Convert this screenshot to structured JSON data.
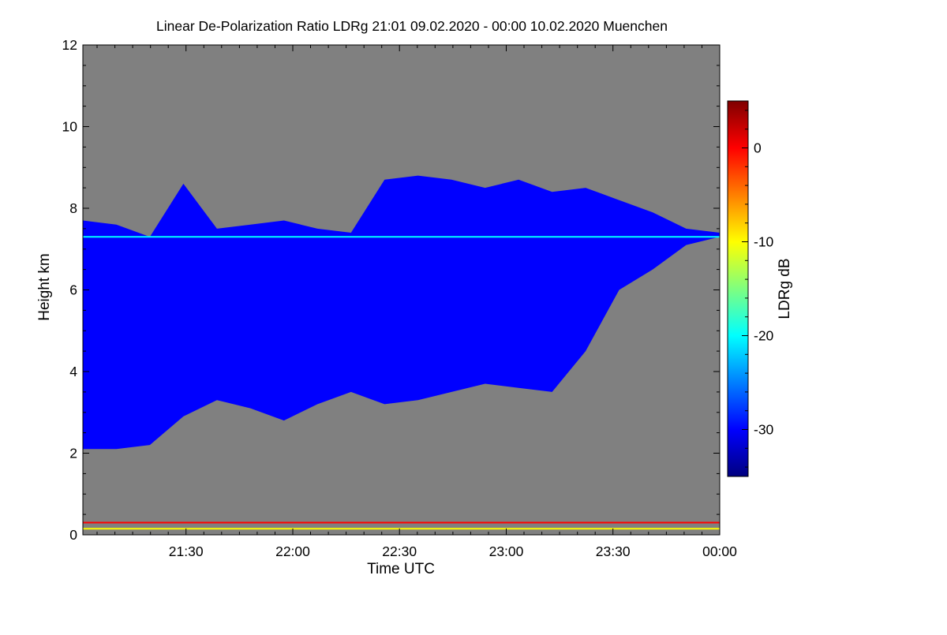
{
  "chart_data": {
    "type": "heatmap",
    "title": "Linear De-Polarization Ratio LDRg   21:01 09.02.2020 - 00:00 10.02.2020 Muenchen",
    "xlabel": "Time UTC",
    "ylabel": "Height km",
    "x_range": [
      "21:01",
      "00:00"
    ],
    "x_ticks": [
      "21:30",
      "22:00",
      "22:30",
      "23:00",
      "23:30",
      "00:00"
    ],
    "ylim": [
      0,
      12
    ],
    "y_ticks": [
      0,
      2,
      4,
      6,
      8,
      10,
      12
    ],
    "colorbar": {
      "label": "LDRg dB",
      "range": [
        -35,
        5
      ],
      "ticks": [
        0,
        -10,
        -20,
        -30
      ],
      "colors": [
        "#00007f",
        "#0000ff",
        "#007fff",
        "#00ffff",
        "#7fff7f",
        "#ffff00",
        "#ff7f00",
        "#ff0000",
        "#7f0000"
      ]
    },
    "background_color": "#808080",
    "cloud_layer": {
      "ldr_db": -30,
      "base_km": [
        2.1,
        2.1,
        2.2,
        2.9,
        3.3,
        3.1,
        2.8,
        3.2,
        3.5,
        3.2,
        3.3,
        3.5,
        3.7,
        3.6,
        3.5,
        4.5,
        6.0,
        6.5,
        7.1,
        7.3
      ],
      "top_km": [
        7.7,
        7.6,
        7.3,
        8.6,
        7.5,
        7.6,
        7.7,
        7.5,
        7.4,
        8.7,
        8.8,
        8.7,
        8.5,
        8.7,
        8.4,
        8.5,
        8.2,
        7.9,
        7.5,
        7.4
      ]
    },
    "bands": [
      {
        "height_km": 0.3,
        "ldr_db": 0
      },
      {
        "height_km": 0.15,
        "ldr_db": -10
      },
      {
        "height_km": 7.3,
        "ldr_db": -20
      }
    ]
  }
}
